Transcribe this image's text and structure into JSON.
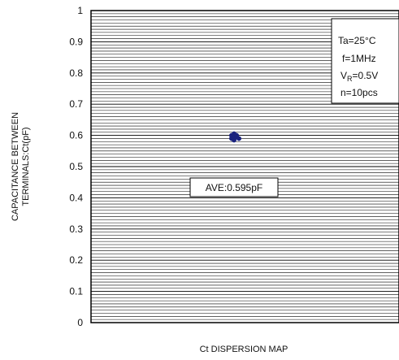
{
  "chart_data": {
    "type": "scatter",
    "title": "",
    "xlabel": "Ct DISPERSION MAP",
    "ylabel_lines": [
      "CAPACITANCE BETWEEN",
      "TERMINALS:Ct(pF)"
    ],
    "ylim": [
      0,
      1
    ],
    "yticks": [
      "0",
      "0.1",
      "0.2",
      "0.3",
      "0.4",
      "0.5",
      "0.6",
      "0.7",
      "0.8",
      "0.9",
      "1"
    ],
    "grid": true,
    "grid_step": 0.01,
    "series": [
      {
        "color": "#1a237e",
        "points": [
          {
            "y": 0.59
          },
          {
            "y": 0.595
          },
          {
            "y": 0.6
          },
          {
            "y": 0.605
          },
          {
            "y": 0.585
          },
          {
            "y": 0.59
          },
          {
            "y": 0.6
          },
          {
            "y": 0.595
          },
          {
            "y": 0.6
          },
          {
            "y": 0.59
          }
        ]
      }
    ],
    "annotations": {
      "average": "AVE:0.595pF",
      "conditions": {
        "ta": "Ta=25°C",
        "f": "f=1MHz",
        "vr_prefix": "V",
        "vr_sub": "R",
        "vr_suffix": "=0.5V",
        "n": "n=10pcs"
      }
    }
  }
}
